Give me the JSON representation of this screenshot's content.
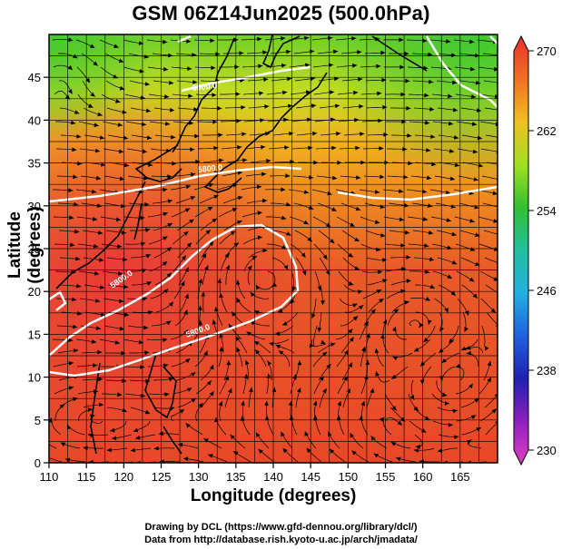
{
  "title": "GSM 06Z14Jun2025 (500.0hPa)",
  "xlabel": "Longitude (degrees)",
  "ylabel": "Latitude  (degrees)",
  "credit_line1": "Drawing by DCL (https://www.gfd-dennou.org/library/dcl/)",
  "credit_line2": "Data from http://database.rish.kyoto-u.ac.jp/arch/jmadata/",
  "chart_data": {
    "type": "heatmap",
    "xlim": [
      110,
      170
    ],
    "ylim": [
      0,
      50
    ],
    "x_ticks": [
      "110",
      "115",
      "120",
      "125",
      "130",
      "135",
      "140",
      "145",
      "150",
      "155",
      "160",
      "165"
    ],
    "y_ticks": [
      "0",
      "5",
      "10",
      "15",
      "20",
      "25",
      "30",
      "35",
      "40",
      "45"
    ],
    "colorbar": {
      "min": 230,
      "max": 270,
      "tick_labels": [
        "230",
        "238",
        "246",
        "254",
        "262",
        "270"
      ]
    },
    "contour_labels": [
      "5800.0",
      "5800.0",
      "5800.0",
      "5800.0"
    ],
    "grid": true
  }
}
